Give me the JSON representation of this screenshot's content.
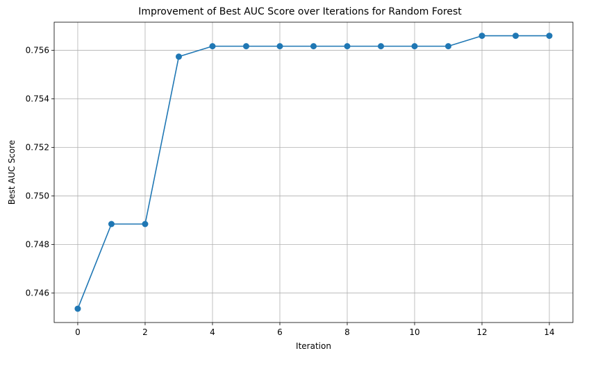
{
  "chart_data": {
    "type": "line",
    "title": "Improvement of Best AUC Score over Iterations for Random Forest",
    "xlabel": "Iteration",
    "ylabel": "Best AUC Score",
    "x": [
      0,
      1,
      2,
      3,
      4,
      5,
      6,
      7,
      8,
      9,
      10,
      11,
      12,
      13,
      14
    ],
    "series": [
      {
        "values": [
          0.74535,
          0.74884,
          0.74884,
          0.75574,
          0.75617,
          0.75617,
          0.75617,
          0.75617,
          0.75617,
          0.75617,
          0.75617,
          0.75617,
          0.7566,
          0.7566,
          0.7566
        ],
        "color": "#1f77b4",
        "marker": "circle"
      }
    ],
    "xticks": [
      0,
      2,
      4,
      6,
      8,
      10,
      12,
      14
    ],
    "xtick_labels": [
      "0",
      "2",
      "4",
      "6",
      "8",
      "10",
      "12",
      "14"
    ],
    "yticks": [
      0.746,
      0.748,
      0.75,
      0.752,
      0.754,
      0.756
    ],
    "ytick_labels": [
      "0.746",
      "0.748",
      "0.750",
      "0.752",
      "0.754",
      "0.756"
    ],
    "xlim": [
      -0.7,
      14.7
    ],
    "ylim": [
      0.74478,
      0.75716
    ],
    "grid": true
  }
}
